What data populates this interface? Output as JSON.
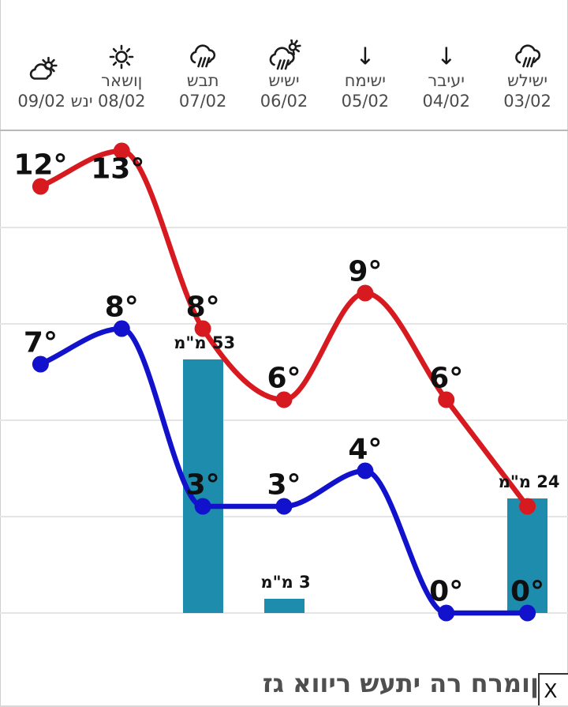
{
  "widget": {
    "type_hint": "hourly-weather-forecast-widget",
    "title_visible": "זג אוויר שעתי הר חרמון",
    "close_label": "X"
  },
  "colors": {
    "max_line": "#d71920",
    "min_line": "#1212cc",
    "precip_bar": "#1e8cac",
    "grid": "#e5e5e5",
    "separator": "#b8b8b8",
    "day_text": "#4b4b4b",
    "temp_text": "#101010",
    "title_text": "#4f4f4f"
  },
  "chart_data": {
    "type": "line+bar",
    "title": "",
    "orientation": "rtl (dates run right-to-left)",
    "categories": [
      "03/02",
      "04/02",
      "05/02",
      "06/02",
      "07/02",
      "08/02",
      "09/02"
    ],
    "series": [
      {
        "name": "max-temp-line",
        "unit": "°C",
        "values": [
          3,
          6,
          9,
          6,
          8,
          13,
          12
        ]
      },
      {
        "name": "min-temp-line",
        "unit": "°C",
        "values": [
          0,
          0,
          4,
          3,
          3,
          8,
          7
        ]
      },
      {
        "name": "precipitation-bars",
        "unit": "מ\"מ",
        "values": [
          24,
          0,
          0,
          3,
          53,
          0,
          0
        ]
      }
    ],
    "unit_mm_label": "מ\"מ",
    "degree_suffix": "°",
    "days": [
      {
        "date": "03/02",
        "name": "שלישי",
        "icon": "rain-cloud",
        "max": 3,
        "max_label_visible": false,
        "min": 0,
        "precip_mm": 24
      },
      {
        "date": "04/02",
        "name": "רביעי",
        "icon": "down-arrow",
        "max": 6,
        "min": 0,
        "precip_mm": 0
      },
      {
        "date": "05/02",
        "name": "חמישי",
        "icon": "down-arrow",
        "max": 9,
        "min": 4,
        "precip_mm": 0
      },
      {
        "date": "06/02",
        "name": "שישי",
        "icon": "sun-rain",
        "max": 6,
        "min": 3,
        "precip_mm": 3
      },
      {
        "date": "07/02",
        "name": "שבת",
        "icon": "rain-cloud",
        "max": 8,
        "min": 3,
        "precip_mm": 53
      },
      {
        "date": "08/02",
        "name": "ראשון",
        "icon": "sun",
        "max": 13,
        "min": 8,
        "precip_mm": 0
      },
      {
        "date": "09/02",
        "name": "שני",
        "icon": "partly-cloudy",
        "max": 12,
        "min": 7,
        "precip_mm": 0,
        "single_line": true
      }
    ],
    "gridlines": "horizontal, unlabeled",
    "legend": "none"
  }
}
